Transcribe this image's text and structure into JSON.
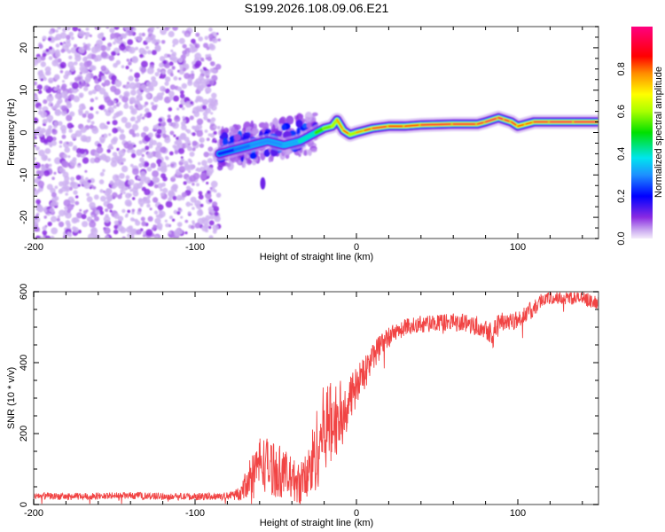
{
  "figure_title": "S199.2026.108.09.06.E21",
  "chart_data": [
    {
      "type": "heatmap",
      "name": "spectrogram",
      "title": "S199.2026.108.09.06.E21",
      "xlabel": "Height of straight line (km)",
      "ylabel": "Frequency (Hz)",
      "xlim": [
        -200,
        150
      ],
      "ylim": [
        -25,
        25
      ],
      "xticks": [
        -200,
        -100,
        0,
        100
      ],
      "xtick_labels": [
        "-200",
        "-100",
        "0",
        "100"
      ],
      "yticks": [
        -20,
        -10,
        0,
        10,
        20
      ],
      "ytick_labels": [
        "-20",
        "-10",
        "0",
        "10",
        "20"
      ],
      "colorbar": {
        "label": "Normalized spectral amplitude",
        "range": [
          0,
          1
        ],
        "ticks": [
          0.0,
          0.2,
          0.4,
          0.6,
          0.8
        ],
        "tick_labels": [
          "0.0",
          "0.2",
          "0.4",
          "0.6",
          "0.8"
        ],
        "colormap": [
          "#f4ecfb",
          "#8a2be2",
          "#0000ff",
          "#00e5ee",
          "#00e000",
          "#ffff00",
          "#ff8c00",
          "#ff0000",
          "#ff0080"
        ]
      },
      "regions": [
        {
          "description": "noise",
          "x_range": [
            -200,
            -85
          ],
          "freq_range": [
            -25,
            25
          ],
          "amplitude_range": [
            0.0,
            0.15
          ]
        },
        {
          "description": "scattered signal",
          "x_range": [
            -85,
            -25
          ],
          "freq_range": [
            -10,
            5
          ],
          "amplitude_range": [
            0.1,
            0.45
          ]
        },
        {
          "description": "tone track",
          "x_range": [
            -25,
            150
          ],
          "freq_range": [
            -1,
            3.5
          ],
          "amplitude_range": [
            0.4,
            1.0
          ]
        }
      ],
      "track": {
        "x": [
          -85,
          -75,
          -65,
          -55,
          -45,
          -35,
          -25,
          -20,
          -15,
          -12,
          -8,
          -4,
          0,
          5,
          10,
          20,
          30,
          40,
          60,
          75,
          80,
          88,
          92,
          96,
          100,
          105,
          110,
          120,
          135,
          150
        ],
        "freq": [
          -5,
          -4,
          -3,
          -2,
          -3,
          -2,
          0,
          1,
          1.5,
          3,
          0.5,
          -0.5,
          0,
          0.5,
          1,
          1.5,
          1.5,
          1.8,
          2,
          2,
          2.5,
          3.5,
          3,
          2.5,
          1.5,
          2,
          2.5,
          2.5,
          2.5,
          2.5
        ],
        "amplitude": [
          0.2,
          0.25,
          0.3,
          0.3,
          0.3,
          0.35,
          0.45,
          0.6,
          0.8,
          0.7,
          0.85,
          0.8,
          0.7,
          0.85,
          0.9,
          0.9,
          0.85,
          0.9,
          0.95,
          0.9,
          0.95,
          0.95,
          0.95,
          0.9,
          0.9,
          0.8,
          0.9,
          0.95,
          0.95,
          0.95
        ]
      }
    },
    {
      "type": "line",
      "name": "snr",
      "xlabel": "Height of straight line (km)",
      "ylabel": "SNR (10 * v/v)",
      "xlim": [
        -200,
        150
      ],
      "ylim": [
        0,
        600
      ],
      "xticks": [
        -200,
        -100,
        0,
        100
      ],
      "xtick_labels": [
        "-200",
        "-100",
        "0",
        "100"
      ],
      "yticks": [
        0,
        200,
        400,
        600
      ],
      "ytick_labels": [
        "0",
        "200",
        "400",
        "600"
      ],
      "series": [
        {
          "name": "SNR",
          "color": "#f03030",
          "x": [
            -200,
            -180,
            -160,
            -140,
            -120,
            -100,
            -80,
            -72,
            -65,
            -60,
            -55,
            -50,
            -45,
            -40,
            -35,
            -30,
            -25,
            -20,
            -15,
            -10,
            -5,
            0,
            5,
            10,
            20,
            30,
            40,
            50,
            60,
            70,
            80,
            85,
            90,
            100,
            105,
            110,
            115,
            120,
            130,
            140,
            150
          ],
          "y": [
            25,
            22,
            24,
            25,
            23,
            22,
            24,
            30,
            90,
            120,
            110,
            100,
            90,
            70,
            60,
            80,
            150,
            220,
            230,
            250,
            290,
            330,
            370,
            420,
            470,
            500,
            510,
            510,
            515,
            510,
            500,
            480,
            520,
            520,
            540,
            550,
            580,
            580,
            585,
            580,
            570
          ],
          "noise_amplitude": [
            10,
            10,
            10,
            10,
            10,
            10,
            10,
            20,
            60,
            80,
            80,
            80,
            70,
            60,
            60,
            80,
            120,
            120,
            120,
            100,
            70,
            60,
            50,
            40,
            30,
            25,
            25,
            25,
            25,
            30,
            30,
            40,
            30,
            25,
            25,
            25,
            20,
            20,
            20,
            20,
            20
          ]
        }
      ]
    }
  ]
}
